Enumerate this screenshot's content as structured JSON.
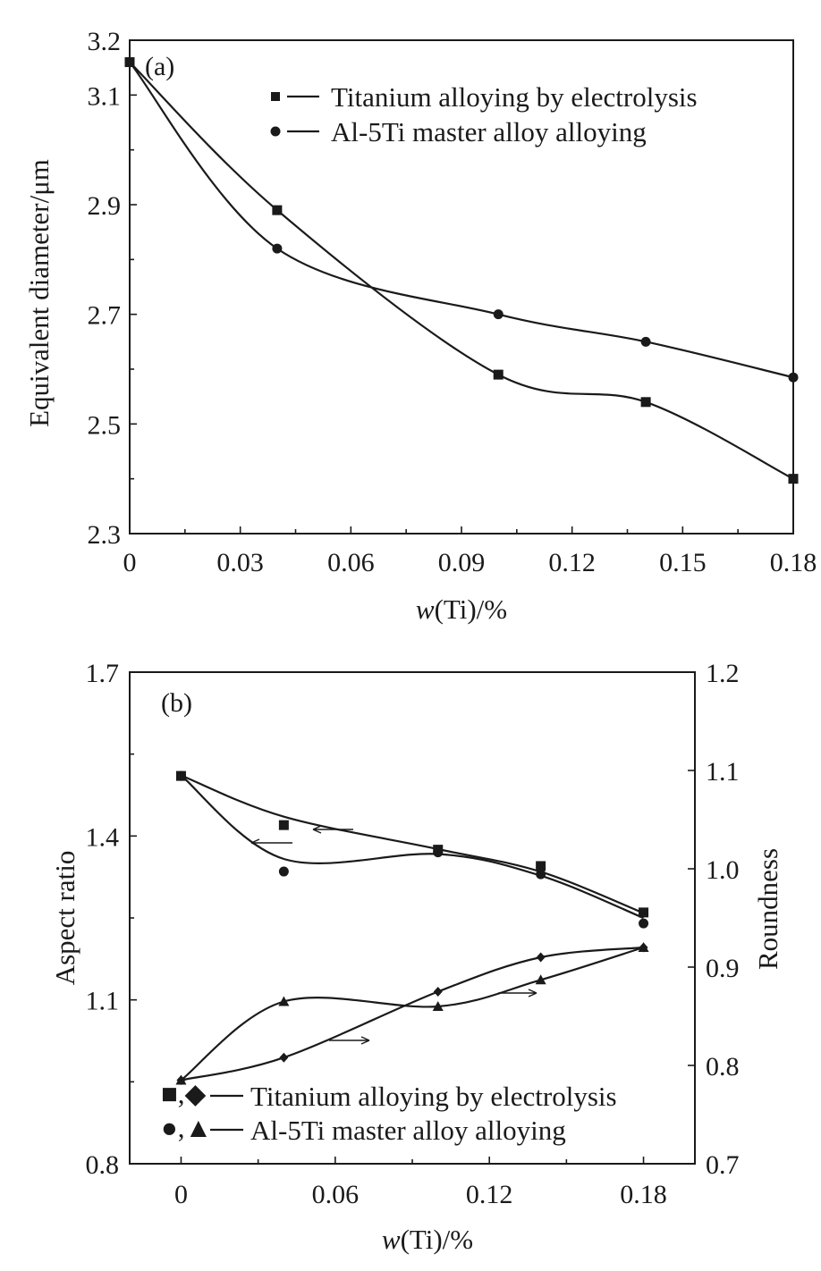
{
  "chart_data": [
    {
      "type": "line",
      "panel_label": "(a)",
      "xlabel": "w(Ti)/%",
      "ylabel": "Equivalent diameter/μm",
      "xlim": [
        0,
        0.18
      ],
      "ylim": [
        2.3,
        3.2
      ],
      "x_ticks": [
        "0",
        "0.03",
        "0.06",
        "0.09",
        "0.12",
        "0.15",
        "0.18"
      ],
      "y_ticks": [
        "2.3",
        "2.5",
        "2.7",
        "2.9",
        "3.1",
        "3.2"
      ],
      "x_tick_values": [
        0,
        0.03,
        0.06,
        0.09,
        0.12,
        0.15,
        0.18
      ],
      "y_tick_values": [
        2.3,
        2.5,
        2.7,
        2.9,
        3.1,
        3.2
      ],
      "legend_position": "top-right",
      "series": [
        {
          "name": "Titanium alloying by electrolysis",
          "marker": "square",
          "x": [
            0,
            0.04,
            0.1,
            0.14,
            0.18
          ],
          "values": [
            3.16,
            2.89,
            2.59,
            2.54,
            2.4
          ]
        },
        {
          "name": "Al-5Ti master alloy alloying",
          "marker": "circle",
          "x": [
            0,
            0.04,
            0.1,
            0.14,
            0.18
          ],
          "values": [
            3.16,
            2.82,
            2.7,
            2.65,
            2.585
          ]
        }
      ]
    },
    {
      "type": "line",
      "panel_label": "(b)",
      "xlabel": "w(Ti)/%",
      "ylabel": "Aspect ratio",
      "y2label": "Roundness",
      "xlim": [
        -0.02,
        0.2
      ],
      "ylim": [
        0.8,
        1.7
      ],
      "y2lim": [
        0.7,
        1.2
      ],
      "x_ticks": [
        "0",
        "0.06",
        "0.12",
        "0.18"
      ],
      "y_ticks": [
        "0.8",
        "1.1",
        "1.4",
        "1.7"
      ],
      "y2_ticks": [
        "0.7",
        "0.8",
        "0.9",
        "1.0",
        "1.1",
        "1.2"
      ],
      "x_tick_values": [
        0,
        0.06,
        0.12,
        0.18
      ],
      "y_tick_values": [
        0.8,
        1.1,
        1.4,
        1.7
      ],
      "y2_tick_values": [
        0.7,
        0.8,
        0.9,
        1.0,
        1.1,
        1.2
      ],
      "legend_position": "bottom-left",
      "legend": [
        {
          "markers": "■,◆",
          "label": "Titanium alloying by electrolysis"
        },
        {
          "markers": "●,▲",
          "label": "Al-5Ti master alloy alloying"
        }
      ],
      "series": [
        {
          "name": "Titanium alloying by electrolysis (aspect ratio)",
          "marker": "square",
          "axis": "left",
          "curve": false,
          "x": [
            0,
            0.04,
            0.1,
            0.14,
            0.18
          ],
          "values": [
            1.51,
            1.42,
            1.375,
            1.345,
            1.26
          ]
        },
        {
          "name": "Al-5Ti master alloy alloying (aspect ratio)",
          "marker": "circle",
          "axis": "left",
          "curve": false,
          "x": [
            0,
            0.04,
            0.1,
            0.14,
            0.18
          ],
          "values": [
            1.51,
            1.335,
            1.37,
            1.33,
            1.24
          ]
        },
        {
          "name": "Titanium alloying by electrolysis (roundness)",
          "marker": "diamond",
          "axis": "right",
          "curve": true,
          "x": [
            0,
            0.04,
            0.1,
            0.14,
            0.18
          ],
          "values": [
            0.785,
            0.808,
            0.875,
            0.91,
            0.92
          ]
        },
        {
          "name": "Al-5Ti master alloy alloying (roundness)",
          "marker": "triangle",
          "axis": "right",
          "curve": true,
          "x": [
            0,
            0.04,
            0.1,
            0.14,
            0.18
          ],
          "values": [
            0.785,
            0.865,
            0.86,
            0.887,
            0.92
          ]
        },
        {
          "name": "Aspect ratio fit (upper)",
          "marker": "none",
          "axis": "right",
          "curve": true,
          "x": [
            0,
            0.04,
            0.1,
            0.14,
            0.18
          ],
          "values": [
            1.095,
            1.053,
            1.02,
            0.997,
            0.955
          ]
        },
        {
          "name": "Aspect ratio fit (lower)",
          "marker": "none",
          "axis": "right",
          "curve": true,
          "x": [
            0,
            0.04,
            0.1,
            0.14,
            0.18
          ],
          "values": [
            1.095,
            1.01,
            1.015,
            0.993,
            0.95
          ]
        }
      ]
    }
  ]
}
